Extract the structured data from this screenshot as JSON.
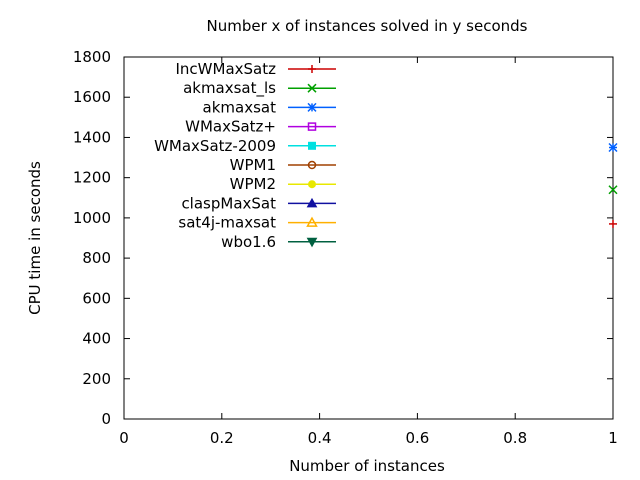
{
  "chart_data": {
    "type": "line",
    "title": "Number x of instances solved in y seconds",
    "xlabel": "Number of instances",
    "ylabel": "CPU time in seconds",
    "xlim": [
      0,
      1
    ],
    "ylim": [
      0,
      1800
    ],
    "x_ticks": [
      "0",
      "0.2",
      "0.4",
      "0.6",
      "0.8",
      "1"
    ],
    "y_ticks": [
      "0",
      "200",
      "400",
      "600",
      "800",
      "1000",
      "1200",
      "1400",
      "1600",
      "1800"
    ],
    "grid": false,
    "legend_position": "top-left",
    "series": [
      {
        "name": "IncWMaxSatz",
        "color": "#cc0000",
        "marker": "plus",
        "points": [
          [
            1,
            970
          ]
        ]
      },
      {
        "name": "akmaxsat_ls",
        "color": "#00a000",
        "marker": "cross",
        "points": [
          [
            1,
            1140
          ]
        ]
      },
      {
        "name": "akmaxsat",
        "color": "#0060ff",
        "marker": "star",
        "points": [
          [
            1,
            1350
          ]
        ]
      },
      {
        "name": "WMaxSatz+",
        "color": "#b000e0",
        "marker": "square-open",
        "points": []
      },
      {
        "name": "WMaxSatz-2009",
        "color": "#00e0e0",
        "marker": "square-filled",
        "points": []
      },
      {
        "name": "WPM1",
        "color": "#a04000",
        "marker": "circle-open",
        "points": []
      },
      {
        "name": "WPM2",
        "color": "#e8e800",
        "marker": "circle-filled",
        "points": []
      },
      {
        "name": "claspMaxSat",
        "color": "#1010a0",
        "marker": "triangle-up",
        "points": []
      },
      {
        "name": "sat4j-maxsat",
        "color": "#ffb000",
        "marker": "triangle-up-open",
        "points": []
      },
      {
        "name": "wbo1.6",
        "color": "#006040",
        "marker": "triangle-down",
        "points": []
      }
    ]
  }
}
